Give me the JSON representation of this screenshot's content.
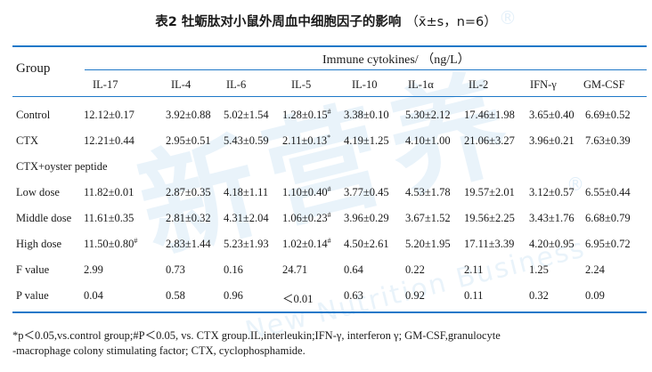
{
  "title": {
    "main": "表2 牡蛎肽对小鼠外周血中细胞因子的影响",
    "suffix": "（x̄±s，n=6）"
  },
  "header": {
    "group_label": "Group",
    "super_label": "Immune cytokines/ （ng/L）",
    "columns": [
      "IL-17",
      "IL-4",
      "IL-6",
      "IL-5",
      "IL-10",
      "IL-1α",
      "IL-2",
      "IFN-γ",
      "GM-CSF"
    ]
  },
  "rows": [
    {
      "label": "Control",
      "cells": [
        {
          "v": "12.12±0.17"
        },
        {
          "v": "3.92±0.88"
        },
        {
          "v": "5.02±1.54"
        },
        {
          "v": "1.28±0.15",
          "sup": "#"
        },
        {
          "v": "3.38±0.10"
        },
        {
          "v": "5.30±2.12"
        },
        {
          "v": "17.46±1.98"
        },
        {
          "v": "3.65±0.40"
        },
        {
          "v": "6.69±0.52"
        }
      ]
    },
    {
      "label": "CTX",
      "cells": [
        {
          "v": "12.21±0.44"
        },
        {
          "v": "2.95±0.51"
        },
        {
          "v": "5.43±0.59"
        },
        {
          "v": "2.11±0.13",
          "sup": "*"
        },
        {
          "v": "4.19±1.25"
        },
        {
          "v": "4.10±1.00"
        },
        {
          "v": "21.06±3.27"
        },
        {
          "v": "3.96±0.21"
        },
        {
          "v": "7.63±0.39"
        }
      ]
    },
    {
      "label": "CTX+oyster peptide",
      "cells": []
    },
    {
      "label": "Low dose",
      "cells": [
        {
          "v": "11.82±0.01"
        },
        {
          "v": "2.87±0.35"
        },
        {
          "v": "4.18±1.11"
        },
        {
          "v": "1.10±0.40",
          "sup": "#"
        },
        {
          "v": "3.77±0.45"
        },
        {
          "v": "4.53±1.78"
        },
        {
          "v": "19.57±2.01"
        },
        {
          "v": "3.12±0.57"
        },
        {
          "v": "6.55±0.44"
        }
      ]
    },
    {
      "label": "Middle dose",
      "cells": [
        {
          "v": "11.61±0.35"
        },
        {
          "v": "2.81±0.32"
        },
        {
          "v": "4.31±2.04"
        },
        {
          "v": "1.06±0.23",
          "sup": "#"
        },
        {
          "v": "3.96±0.29"
        },
        {
          "v": "3.67±1.52"
        },
        {
          "v": "19.56±2.25"
        },
        {
          "v": "3.43±1.76"
        },
        {
          "v": "6.68±0.79"
        }
      ]
    },
    {
      "label": "High dose",
      "cells": [
        {
          "v": "11.50±0.80",
          "sup": "#"
        },
        {
          "v": "2.83±1.44"
        },
        {
          "v": "5.23±1.93"
        },
        {
          "v": "1.02±0.14",
          "sup": "#"
        },
        {
          "v": "4.50±2.61"
        },
        {
          "v": "5.20±1.95"
        },
        {
          "v": "17.11±3.39"
        },
        {
          "v": "4.20±0.95"
        },
        {
          "v": "6.95±0.72"
        }
      ]
    },
    {
      "label": "F value",
      "cells": [
        {
          "v": "2.99"
        },
        {
          "v": "0.73"
        },
        {
          "v": "0.16"
        },
        {
          "v": "24.71"
        },
        {
          "v": "0.64"
        },
        {
          "v": "0.22"
        },
        {
          "v": "2.11"
        },
        {
          "v": "1.25"
        },
        {
          "v": "2.24"
        }
      ]
    },
    {
      "label": "P value",
      "cells": [
        {
          "v": "0.04"
        },
        {
          "v": "0.58"
        },
        {
          "v": "0.96"
        },
        {
          "v": "＜0.01"
        },
        {
          "v": "0.63"
        },
        {
          "v": "0.92"
        },
        {
          "v": "0.11"
        },
        {
          "v": "0.32"
        },
        {
          "v": "0.09"
        }
      ]
    }
  ],
  "footnote": {
    "line1": "*p＜0.05,vs.control group;#P＜0.05, vs. CTX group.IL,interleukin;IFN-γ, interferon γ; GM-CSF,granulocyte",
    "line2": "-macrophage colony stimulating factor; CTX, cyclophosphamide."
  },
  "watermark": {
    "main": "新营养",
    "sub": "New Nutrition Business",
    "registered": "®"
  },
  "colors": {
    "rule": "#1e78c8",
    "text": "#1a1a1a",
    "watermark": "#5fa8df"
  }
}
